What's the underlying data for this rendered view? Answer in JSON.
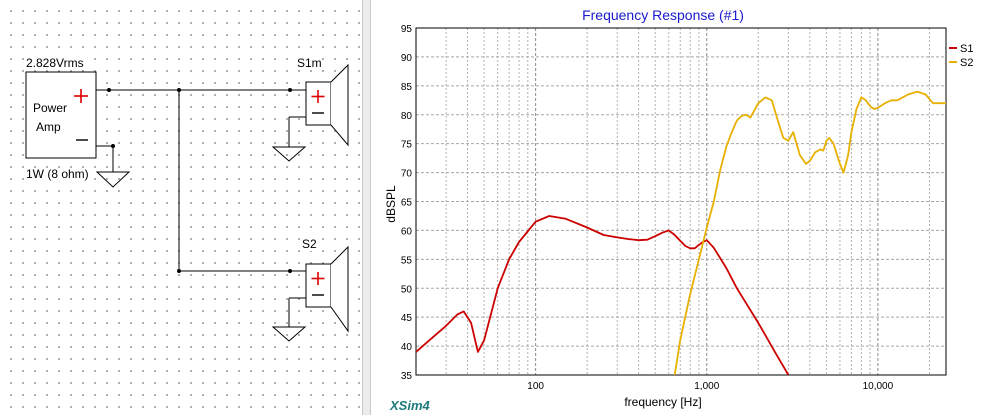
{
  "schematic": {
    "source_label": "2.828Vrms",
    "amp_label_line1": "Power",
    "amp_label_line2": "Amp",
    "amp_power_label": "1W (8 ohm)",
    "driver1_label": "S1m",
    "driver2_label": "S2"
  },
  "chart_data": {
    "type": "line",
    "title": "Frequency Response (#1)",
    "xlabel": "frequency [Hz]",
    "ylabel": "dBSPL",
    "xscale": "log",
    "xlim": [
      20,
      25000
    ],
    "ylim": [
      35,
      95
    ],
    "yticks": [
      35,
      40,
      45,
      50,
      55,
      60,
      65,
      70,
      75,
      80,
      85,
      90,
      95
    ],
    "xtick_labels": [
      {
        "v": 100,
        "t": "100"
      },
      {
        "v": 1000,
        "t": "1,000"
      },
      {
        "v": 10000,
        "t": "10,000"
      }
    ],
    "grid": true,
    "legend_position": "right",
    "series": [
      {
        "name": "S1",
        "color": "#cc0000",
        "x": [
          20,
          25,
          30,
          35,
          38,
          42,
          46,
          50,
          60,
          70,
          80,
          100,
          120,
          150,
          200,
          250,
          300,
          350,
          400,
          450,
          500,
          550,
          600,
          650,
          700,
          750,
          800,
          850,
          900,
          950,
          1000,
          1100,
          1300,
          1500,
          2000,
          2500,
          3000
        ],
        "y": [
          39,
          41.5,
          43.5,
          45.5,
          46,
          44,
          39,
          41,
          50,
          55,
          58,
          61.5,
          62.5,
          62,
          60.5,
          59.2,
          58.8,
          58.5,
          58.3,
          58.4,
          59,
          59.6,
          60,
          59.2,
          58.2,
          57.3,
          56.9,
          56.9,
          57.5,
          58,
          58.3,
          57,
          53.5,
          50,
          44,
          39,
          35
        ]
      },
      {
        "name": "S2",
        "color": "#e8b000",
        "x": [
          650,
          700,
          800,
          900,
          1000,
          1100,
          1200,
          1300,
          1400,
          1500,
          1600,
          1700,
          1800,
          2000,
          2200,
          2400,
          2600,
          2800,
          3000,
          3200,
          3500,
          3800,
          4000,
          4300,
          4600,
          4800,
          5000,
          5200,
          5500,
          6000,
          6300,
          6700,
          7000,
          7500,
          8000,
          8500,
          9000,
          9500,
          10000,
          11000,
          12000,
          13000,
          15000,
          17000,
          19000,
          21000,
          25000
        ],
        "y": [
          35,
          41,
          49,
          55,
          60.5,
          65,
          70.5,
          74.5,
          77,
          79,
          79.8,
          80,
          79.5,
          82,
          83,
          82.5,
          79,
          76,
          75.5,
          77,
          73,
          71.5,
          72,
          73.5,
          74,
          73.8,
          75.5,
          76,
          75,
          71.5,
          70,
          73,
          77,
          81,
          83,
          82.5,
          81.5,
          81,
          81.2,
          82,
          82.5,
          82.5,
          83.5,
          84,
          83.5,
          82,
          82
        ]
      }
    ]
  },
  "watermark": "XSim4"
}
